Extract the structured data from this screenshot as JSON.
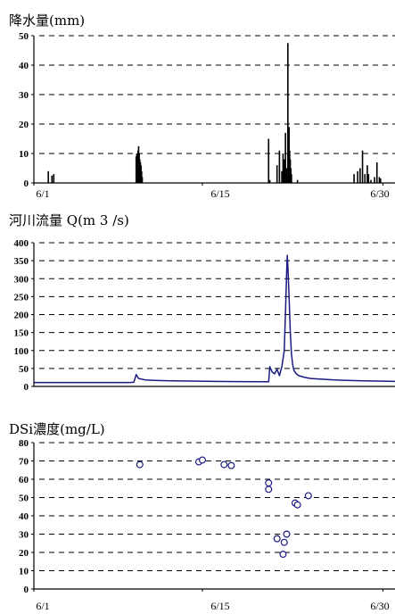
{
  "chart_data": [
    {
      "type": "bar",
      "title": "降水量(mm)",
      "ylim": [
        0,
        50
      ],
      "yticks": [
        0,
        10,
        20,
        30,
        40,
        50
      ],
      "xlim": [
        1,
        31
      ],
      "xticks": [
        {
          "label": "6/1",
          "day": 1
        },
        {
          "label": "6/15",
          "day": 15
        },
        {
          "label": "6/30",
          "day": 30
        }
      ],
      "grid": true,
      "color": "#000000",
      "bars": [
        {
          "day": 2.2,
          "value": 4
        },
        {
          "day": 2.5,
          "value": 2.5
        },
        {
          "day": 2.65,
          "value": 3
        },
        {
          "day": 9.5,
          "value": 9
        },
        {
          "day": 9.55,
          "value": 10
        },
        {
          "day": 9.6,
          "value": 8
        },
        {
          "day": 9.65,
          "value": 11
        },
        {
          "day": 9.7,
          "value": 12.5
        },
        {
          "day": 9.75,
          "value": 10
        },
        {
          "day": 9.8,
          "value": 8
        },
        {
          "day": 9.85,
          "value": 7
        },
        {
          "day": 9.9,
          "value": 6
        },
        {
          "day": 9.95,
          "value": 4
        },
        {
          "day": 10.0,
          "value": 2
        },
        {
          "day": 20.5,
          "value": 15
        },
        {
          "day": 20.6,
          "value": 1
        },
        {
          "day": 21.2,
          "value": 6
        },
        {
          "day": 21.4,
          "value": 11
        },
        {
          "day": 21.6,
          "value": 4
        },
        {
          "day": 21.7,
          "value": 10
        },
        {
          "day": 21.8,
          "value": 8
        },
        {
          "day": 21.9,
          "value": 17
        },
        {
          "day": 22.0,
          "value": 5
        },
        {
          "day": 22.1,
          "value": 47.5
        },
        {
          "day": 22.15,
          "value": 10
        },
        {
          "day": 22.2,
          "value": 19
        },
        {
          "day": 22.25,
          "value": 11
        },
        {
          "day": 22.3,
          "value": 8
        },
        {
          "day": 22.35,
          "value": 5
        },
        {
          "day": 22.4,
          "value": 3
        },
        {
          "day": 22.9,
          "value": 1
        },
        {
          "day": 27.6,
          "value": 3
        },
        {
          "day": 27.9,
          "value": 4
        },
        {
          "day": 28.1,
          "value": 5
        },
        {
          "day": 28.3,
          "value": 11
        },
        {
          "day": 28.5,
          "value": 3
        },
        {
          "day": 28.7,
          "value": 6
        },
        {
          "day": 28.8,
          "value": 3
        },
        {
          "day": 29.0,
          "value": 1
        },
        {
          "day": 29.3,
          "value": 2
        },
        {
          "day": 29.5,
          "value": 7
        },
        {
          "day": 29.7,
          "value": 2
        },
        {
          "day": 29.8,
          "value": 1.5
        }
      ]
    },
    {
      "type": "line",
      "title": "河川流量 Q(m 3 /s)",
      "ylim": [
        0,
        400
      ],
      "yticks": [
        0,
        50,
        100,
        150,
        200,
        250,
        300,
        350,
        400
      ],
      "xlim": [
        1,
        31
      ],
      "grid": true,
      "color": "#1a1a80",
      "x": [
        1,
        9.0,
        9.3,
        9.5,
        9.7,
        10.3,
        11,
        12,
        14,
        16,
        18,
        20.5,
        20.6,
        20.8,
        21.0,
        21.2,
        21.4,
        21.6,
        21.8,
        21.9,
        22.0,
        22.05,
        22.1,
        22.2,
        22.3,
        22.4,
        22.5,
        22.6,
        22.8,
        23.0,
        23.5,
        24,
        26,
        28,
        31
      ],
      "y": [
        11,
        11,
        12,
        33,
        22,
        18,
        17,
        16,
        15,
        14,
        13.5,
        13,
        55,
        40,
        35,
        48,
        30,
        55,
        100,
        200,
        320,
        365,
        330,
        250,
        150,
        90,
        60,
        45,
        35,
        30,
        25,
        22,
        18,
        16,
        14
      ]
    },
    {
      "type": "scatter",
      "title": "DSi濃度(mg/L)",
      "ylim": [
        0,
        80
      ],
      "yticks": [
        0,
        10,
        20,
        30,
        40,
        50,
        60,
        70,
        80
      ],
      "xlim": [
        1,
        31
      ],
      "xticks": [
        {
          "label": "6/1",
          "day": 1
        },
        {
          "label": "6/15",
          "day": 15
        },
        {
          "label": "6/30",
          "day": 30
        }
      ],
      "grid": true,
      "color": "#1a1a80",
      "x": [
        9.8,
        14.7,
        15.0,
        16.8,
        17.4,
        20.5,
        20.5,
        21.2,
        21.7,
        21.8,
        22.0,
        22.7,
        22.9,
        23.8
      ],
      "y": [
        68,
        69.5,
        70.5,
        68,
        67.5,
        58,
        54.5,
        27.5,
        19,
        25.5,
        30,
        47,
        46,
        51
      ]
    }
  ]
}
